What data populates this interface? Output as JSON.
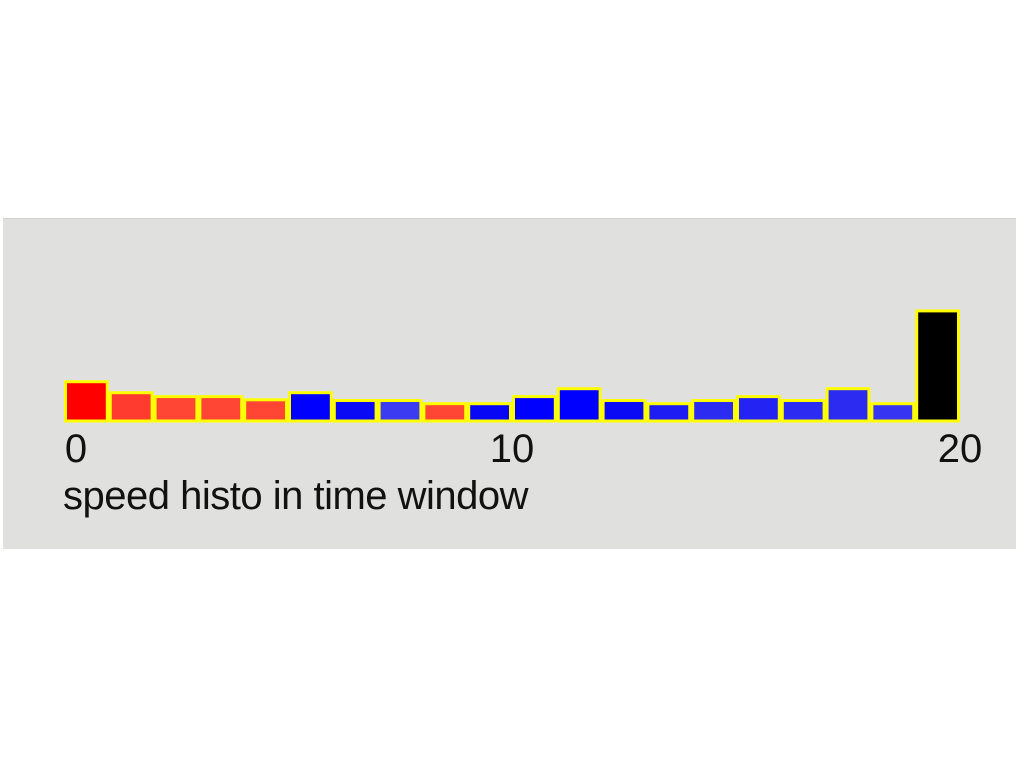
{
  "chart_data": {
    "type": "bar",
    "title": "speed histo in time window",
    "xlabel": "",
    "ylabel": "",
    "x_ticks": [
      "0",
      "10",
      "20"
    ],
    "x_tick_values": [
      0,
      10,
      20
    ],
    "xlim": [
      0,
      21
    ],
    "ylim": [
      0,
      3
    ],
    "bars": [
      {
        "x": 0,
        "value": 1.0,
        "color": "#fe0000"
      },
      {
        "x": 1,
        "value": 0.72,
        "color": "#ff3a2e"
      },
      {
        "x": 2,
        "value": 0.62,
        "color": "#ff4533"
      },
      {
        "x": 3,
        "value": 0.62,
        "color": "#ff4533"
      },
      {
        "x": 4,
        "value": 0.54,
        "color": "#ff4533"
      },
      {
        "x": 5,
        "value": 0.72,
        "color": "#0000fe"
      },
      {
        "x": 6,
        "value": 0.52,
        "color": "#0a0af4"
      },
      {
        "x": 7,
        "value": 0.52,
        "color": "#3b3bf2"
      },
      {
        "x": 8,
        "value": 0.44,
        "color": "#ff4533"
      },
      {
        "x": 9,
        "value": 0.44,
        "color": "#0707f6"
      },
      {
        "x": 10,
        "value": 0.62,
        "color": "#0000fe"
      },
      {
        "x": 11,
        "value": 0.82,
        "color": "#0000fe"
      },
      {
        "x": 12,
        "value": 0.52,
        "color": "#0a0af4"
      },
      {
        "x": 13,
        "value": 0.44,
        "color": "#1c1cf3"
      },
      {
        "x": 14,
        "value": 0.52,
        "color": "#2b2bf2"
      },
      {
        "x": 15,
        "value": 0.62,
        "color": "#2323f3"
      },
      {
        "x": 16,
        "value": 0.52,
        "color": "#2b2bf2"
      },
      {
        "x": 17,
        "value": 0.82,
        "color": "#2b2bf2"
      },
      {
        "x": 18,
        "value": 0.44,
        "color": "#3535f2"
      },
      {
        "x": 19,
        "value": 2.8,
        "color": "#000000"
      }
    ],
    "bar_outline_color": "#fefe00",
    "grid": false,
    "legend": "none"
  }
}
